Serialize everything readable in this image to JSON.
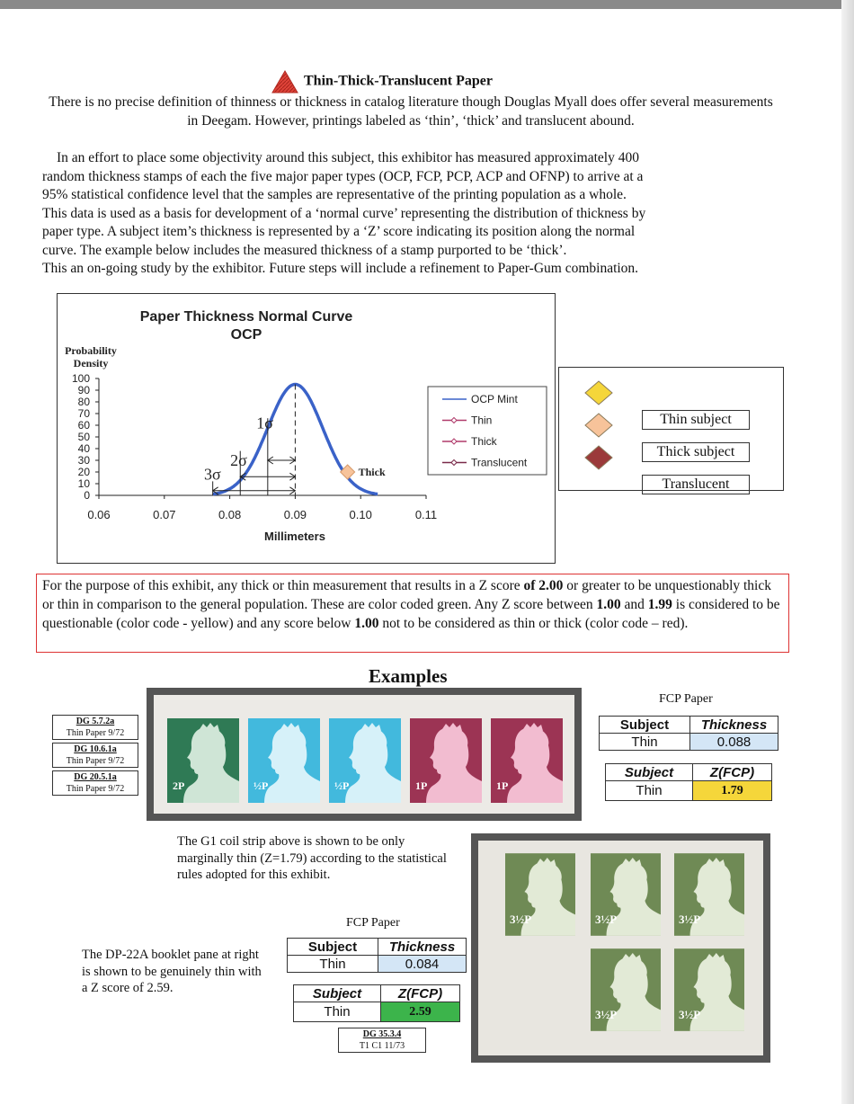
{
  "title": "Thin-Thick-Translucent Paper",
  "intro_paragraph": "There is no precise definition of thinness or thickness in catalog literature though Douglas Myall does offer several measurements in Deegam. However, printings labeled as ‘thin’, ‘thick’ and translucent abound.",
  "study_paragraph_lines": [
    "In an effort to place some objectivity around this subject, this exhibitor has measured approximately 400",
    "random thickness stamps of each the five major paper types (OCP, FCP, PCP, ACP and OFNP) to arrive at a",
    "95% statistical confidence level that the samples are representative of the printing population as a whole.",
    "This data is used as a basis for development of a ‘normal curve’ representing the distribution of thickness by",
    "paper type.  A subject item’s thickness is represented by a ‘Z’ score indicating its position along the normal",
    "curve.  The example below includes the measured thickness of a stamp purported to be ‘thick’.",
    "This an on-going study by the exhibitor. Future steps will include a refinement to Paper-Gum combination."
  ],
  "chart_data": {
    "type": "line",
    "title": "Paper Thickness Normal Curve",
    "subtitle": "OCP",
    "xlabel": "Millimeters",
    "ylabel": "Probability Density",
    "xlim": [
      0.06,
      0.11
    ],
    "ylim": [
      0,
      100
    ],
    "x_ticks": [
      "0.06",
      "0.07",
      "0.08",
      "0.09",
      "0.10",
      "0.11"
    ],
    "y_ticks": [
      "0",
      "10",
      "20",
      "30",
      "40",
      "50",
      "60",
      "70",
      "80",
      "90",
      "100"
    ],
    "grid": false,
    "legend_position": "right",
    "series": [
      {
        "name": "OCP Mint",
        "color": "#3a62c8",
        "mean": 0.09,
        "sd": 0.0042,
        "x": [
          0.0774,
          0.08,
          0.082,
          0.084,
          0.086,
          0.088,
          0.09,
          0.092,
          0.094,
          0.096,
          0.098,
          0.1,
          0.1026
        ],
        "y": [
          1,
          5,
          15,
          36,
          64,
          89,
          95,
          89,
          64,
          36,
          15,
          5,
          1
        ]
      },
      {
        "name": "Thin",
        "color": "#b03a6a",
        "x": [],
        "y": []
      },
      {
        "name": "Thick",
        "color": "#b03a6a",
        "x": [
          0.098
        ],
        "y": [
          20
        ],
        "marker_color": "#f7c39a"
      },
      {
        "name": "Translucent",
        "color": "#7a2a4a",
        "x": [],
        "y": []
      }
    ],
    "annotations": [
      {
        "text": "Thick",
        "x": 0.098,
        "y": 20
      },
      {
        "text": "1σ",
        "x": 0.086,
        "y": 62
      },
      {
        "text": "2σ",
        "x": 0.082,
        "y": 30
      },
      {
        "text": "3σ",
        "x": 0.078,
        "y": 18
      }
    ],
    "sigma_lines_x": [
      0.0774,
      0.0816,
      0.0858
    ],
    "mean_line_x": 0.09
  },
  "legend_side": {
    "items": [
      {
        "label": "Thin subject",
        "color": "#f5d63a"
      },
      {
        "label": "Thick subject",
        "color": "#f7c39a"
      },
      {
        "label": "Translucent",
        "color": "#9b3a3a"
      }
    ]
  },
  "criteria": {
    "t1": "For the purpose of this exhibit, any thick or thin measurement that results in a Z score ",
    "b1": "of 2.00",
    "t2": " or greater to be unquestionably thick or thin in comparison to the general population. These are color coded green. Any Z score between ",
    "b2": "1.00",
    "t3": " and ",
    "b3": "1.99",
    "t4": " is considered to be questionable (color code - yellow)  and any score below ",
    "b4": "1.00",
    "t5": " not to be considered as thin or thick (color code – red)."
  },
  "examples_heading": "Examples",
  "strip": {
    "stamps": [
      {
        "value": "2P",
        "color": "#2f7a55",
        "light": "#cfe5d6"
      },
      {
        "value": "½P",
        "color": "#42b9dd",
        "light": "#d6f1f9"
      },
      {
        "value": "½P",
        "color": "#42b9dd",
        "light": "#d6f1f9"
      },
      {
        "value": "1P",
        "color": "#9c3454",
        "light": "#f2bcd0"
      },
      {
        "value": "1P",
        "color": "#9c3454",
        "light": "#f2bcd0"
      }
    ],
    "tags": [
      {
        "code": "DG 5.7.2a",
        "desc": "Thin Paper  9/72"
      },
      {
        "code": "DG 10.6.1a",
        "desc": "Thin Paper  9/72"
      },
      {
        "code": "DG 20.5.1a",
        "desc": "Thin Paper  9/72"
      }
    ]
  },
  "example1": {
    "paper_title": "FCP Paper",
    "thickness_table": {
      "subject_header": "Subject",
      "thickness_header": "Thickness",
      "subject": "Thin",
      "thickness": "0.088"
    },
    "z_table": {
      "subject_header": "Subject",
      "z_header": "Z(FCP)",
      "subject": "Thin",
      "z": "1.79",
      "z_color": "#f5d63a"
    },
    "note": "The G1 coil strip above is shown to be only marginally thin (Z=1.79) according to the statistical rules adopted for this exhibit."
  },
  "example2": {
    "paper_title": "FCP Paper",
    "thickness_table": {
      "subject_header": "Subject",
      "thickness_header": "Thickness",
      "subject": "Thin",
      "thickness": "0.084"
    },
    "z_table": {
      "subject_header": "Subject",
      "z_header": "Z(FCP)",
      "subject": "Thin",
      "z": "2.59",
      "z_color": "#3cb44b"
    },
    "note": "The DP-22A booklet pane at right is shown to be genuinely thin with a Z score of 2.59.",
    "tag": {
      "code": "DG 35.3.4",
      "desc": "T1  C1  11/73"
    }
  },
  "pane": {
    "stamp_value": "3½P",
    "stamp_color": "#6f8a55",
    "stamp_light": "#e2ead6"
  }
}
